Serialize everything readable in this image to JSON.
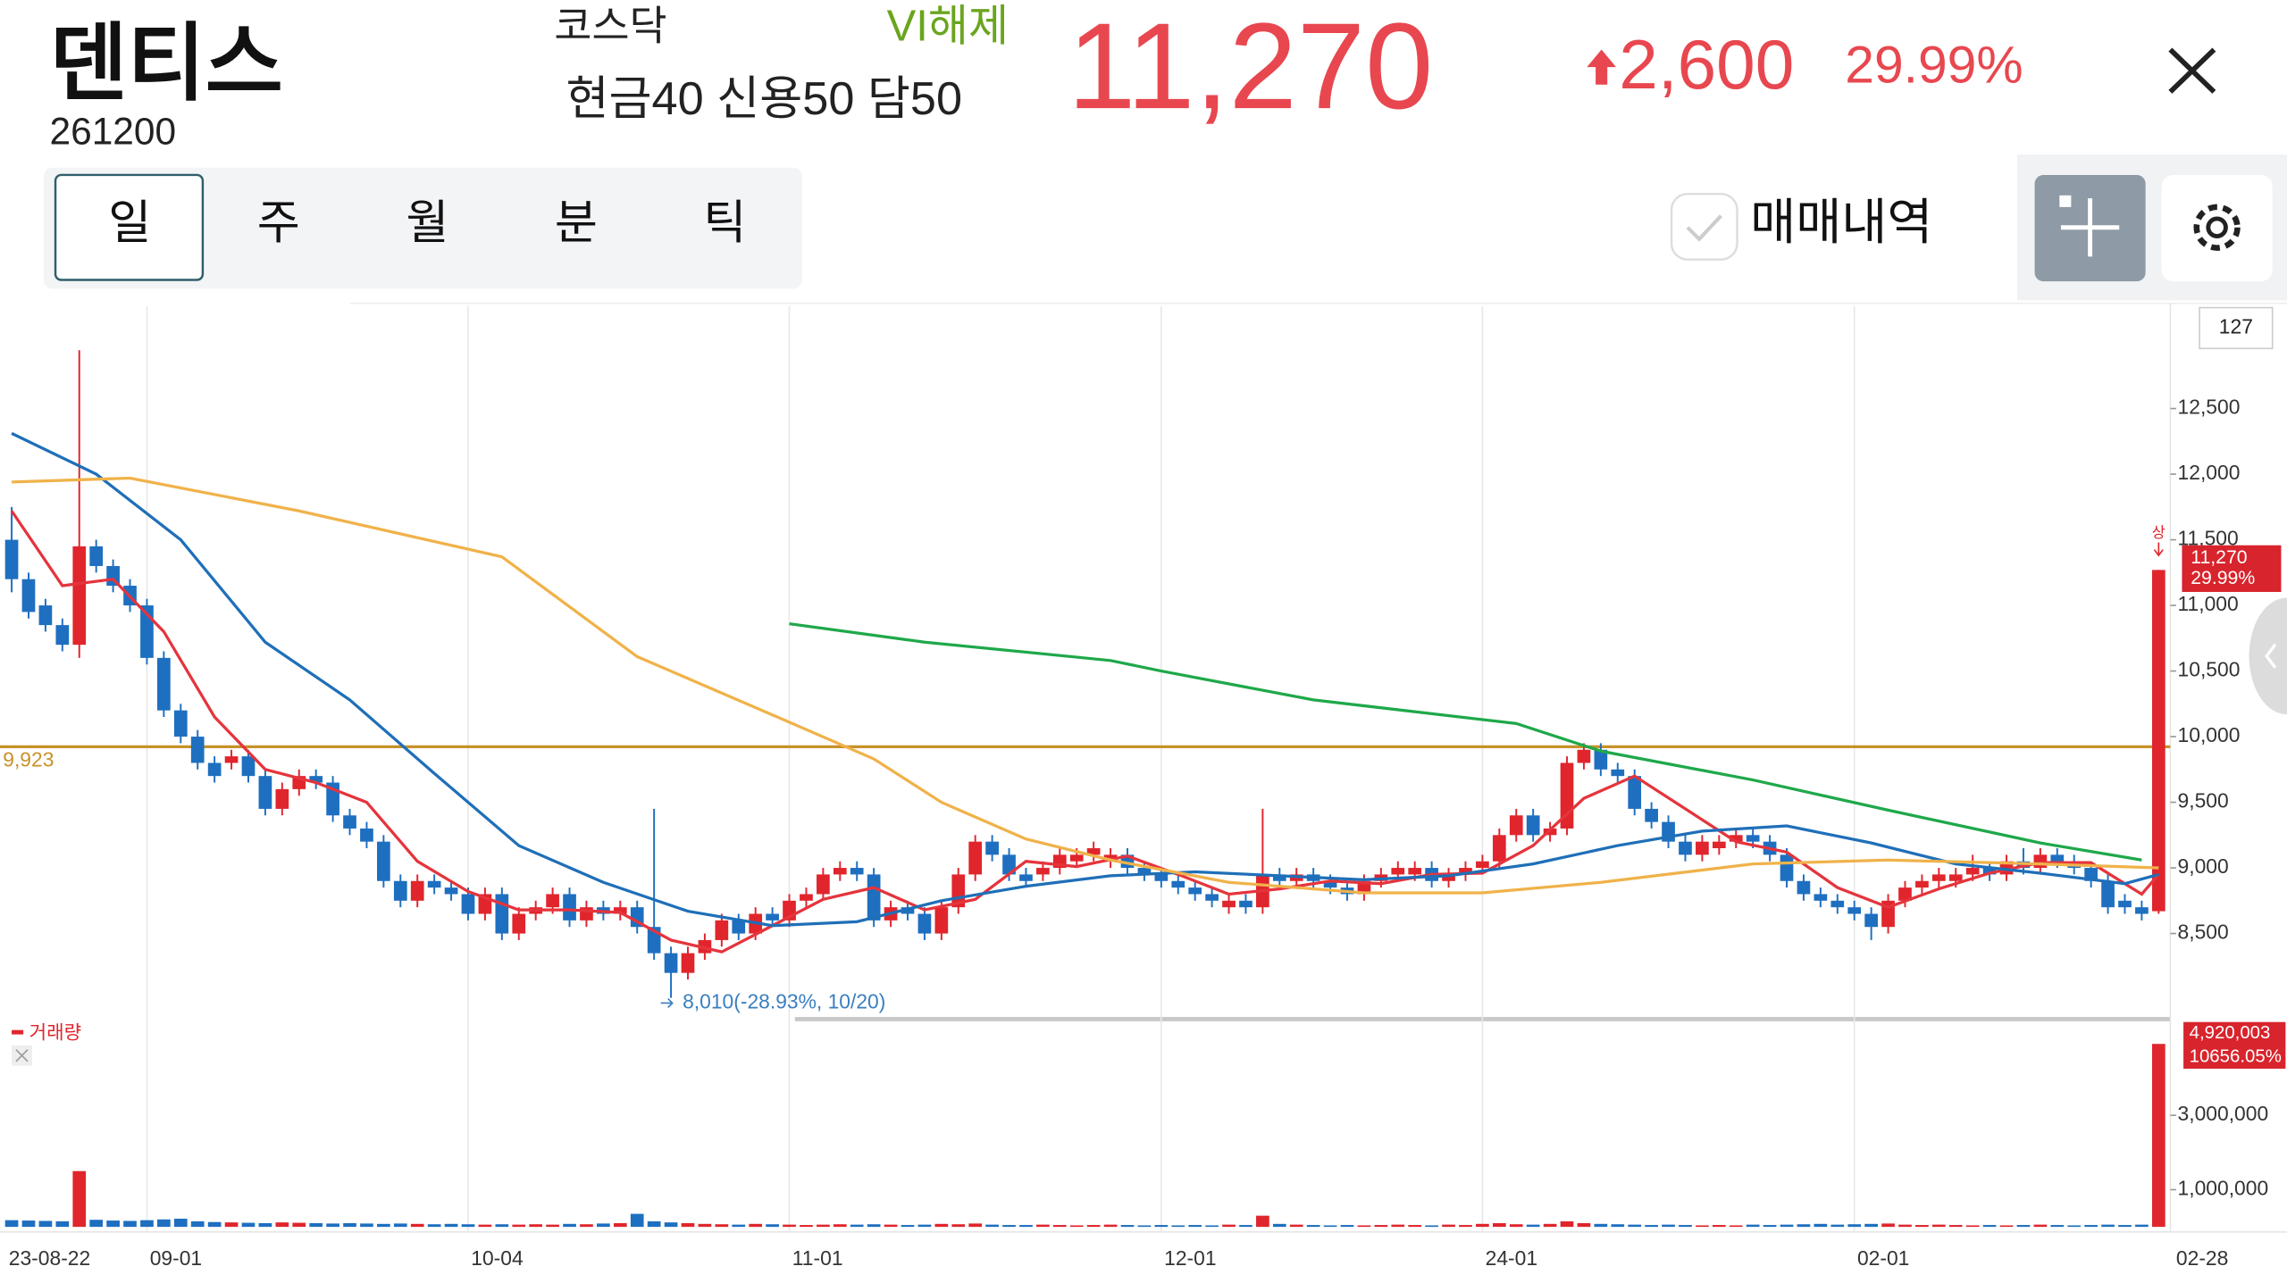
{
  "header": {
    "name": "덴티스",
    "code": "261200",
    "market": "코스닥",
    "vi_status": "VI해제",
    "margin": "현금40 신용50 담50",
    "price": "11,270",
    "change": "2,600",
    "change_pct": "29.99%"
  },
  "tabs": [
    "일",
    "주",
    "월",
    "분",
    "틱"
  ],
  "controls": {
    "trade_history": "매매내역"
  },
  "chart_data": {
    "type": "candlestick",
    "up_color": "#e0252c",
    "down_color": "#1e6fc0",
    "categories": [
      "23-08-22",
      null,
      null,
      null,
      null,
      null,
      null,
      null,
      "09-01",
      null,
      null,
      null,
      null,
      null,
      null,
      null,
      null,
      null,
      null,
      null,
      null,
      null,
      null,
      null,
      null,
      null,
      null,
      "10-04",
      null,
      null,
      null,
      null,
      null,
      null,
      null,
      null,
      null,
      null,
      null,
      null,
      null,
      null,
      null,
      null,
      null,
      null,
      "11-01",
      null,
      null,
      null,
      null,
      null,
      null,
      null,
      null,
      null,
      null,
      null,
      null,
      null,
      null,
      null,
      null,
      null,
      null,
      null,
      null,
      null,
      "12-01",
      null,
      null,
      null,
      null,
      null,
      null,
      null,
      null,
      null,
      null,
      null,
      null,
      null,
      null,
      null,
      null,
      null,
      null,
      "24-01",
      null,
      null,
      null,
      null,
      null,
      null,
      null,
      null,
      null,
      null,
      null,
      null,
      null,
      null,
      null,
      null,
      null,
      null,
      null,
      null,
      null,
      "02-01",
      null,
      null,
      null,
      null,
      null,
      null,
      null,
      null,
      null,
      null,
      null,
      null,
      null,
      null,
      null,
      null,
      null,
      "02-28"
    ],
    "x_grid": true,
    "ohlc": [
      [
        11500,
        11750,
        11100,
        11200
      ],
      [
        11200,
        11250,
        10900,
        10950
      ],
      [
        11000,
        11050,
        10800,
        10850
      ],
      [
        10850,
        10900,
        10650,
        10700
      ],
      [
        10700,
        12944,
        10600,
        11450
      ],
      [
        11450,
        11500,
        11250,
        11300
      ],
      [
        11300,
        11350,
        11100,
        11150
      ],
      [
        11150,
        11200,
        10950,
        11000
      ],
      [
        11000,
        11050,
        10550,
        10600
      ],
      [
        10600,
        10650,
        10150,
        10200
      ],
      [
        10200,
        10250,
        9950,
        10000
      ],
      [
        10000,
        10050,
        9750,
        9800
      ],
      [
        9800,
        9850,
        9650,
        9700
      ],
      [
        9800,
        9900,
        9750,
        9850
      ],
      [
        9850,
        9900,
        9650,
        9700
      ],
      [
        9700,
        9750,
        9400,
        9450
      ],
      [
        9450,
        9650,
        9400,
        9600
      ],
      [
        9600,
        9750,
        9550,
        9700
      ],
      [
        9700,
        9750,
        9600,
        9650
      ],
      [
        9650,
        9700,
        9350,
        9400
      ],
      [
        9400,
        9450,
        9250,
        9300
      ],
      [
        9300,
        9350,
        9150,
        9200
      ],
      [
        9200,
        9250,
        8850,
        8900
      ],
      [
        8900,
        8950,
        8700,
        8750
      ],
      [
        8750,
        8950,
        8700,
        8900
      ],
      [
        8900,
        8950,
        8800,
        8850
      ],
      [
        8850,
        8900,
        8750,
        8800
      ],
      [
        8800,
        8850,
        8600,
        8650
      ],
      [
        8650,
        8850,
        8600,
        8800
      ],
      [
        8800,
        8850,
        8450,
        8500
      ],
      [
        8500,
        8700,
        8450,
        8650
      ],
      [
        8650,
        8750,
        8600,
        8700
      ],
      [
        8700,
        8850,
        8650,
        8800
      ],
      [
        8800,
        8850,
        8550,
        8600
      ],
      [
        8600,
        8750,
        8550,
        8700
      ],
      [
        8700,
        8750,
        8600,
        8650
      ],
      [
        8650,
        8750,
        8600,
        8700
      ],
      [
        8700,
        8750,
        8500,
        8550
      ],
      [
        8550,
        9450,
        8300,
        8350
      ],
      [
        8350,
        8400,
        8010,
        8200
      ],
      [
        8200,
        8400,
        8150,
        8350
      ],
      [
        8350,
        8500,
        8300,
        8450
      ],
      [
        8450,
        8650,
        8400,
        8600
      ],
      [
        8600,
        8650,
        8450,
        8500
      ],
      [
        8500,
        8700,
        8450,
        8650
      ],
      [
        8650,
        8700,
        8550,
        8600
      ],
      [
        8600,
        8800,
        8550,
        8750
      ],
      [
        8750,
        8850,
        8700,
        8800
      ],
      [
        8800,
        9000,
        8750,
        8950
      ],
      [
        8950,
        9050,
        8900,
        9000
      ],
      [
        9000,
        9050,
        8900,
        8950
      ],
      [
        8950,
        9000,
        8550,
        8600
      ],
      [
        8600,
        8750,
        8550,
        8700
      ],
      [
        8700,
        8750,
        8600,
        8650
      ],
      [
        8650,
        8700,
        8450,
        8500
      ],
      [
        8500,
        8750,
        8450,
        8700
      ],
      [
        8700,
        9000,
        8650,
        8950
      ],
      [
        8950,
        9250,
        8900,
        9200
      ],
      [
        9200,
        9250,
        9050,
        9100
      ],
      [
        9100,
        9150,
        8900,
        8950
      ],
      [
        8950,
        9000,
        8850,
        8900
      ],
      [
        8950,
        9050,
        8900,
        9000
      ],
      [
        9000,
        9150,
        8950,
        9100
      ],
      [
        9050,
        9150,
        9000,
        9100
      ],
      [
        9100,
        9200,
        9050,
        9150
      ],
      [
        9050,
        9150,
        9000,
        9100
      ],
      [
        9100,
        9150,
        8950,
        9000
      ],
      [
        9000,
        9050,
        8900,
        8950
      ],
      [
        8950,
        9000,
        8850,
        8900
      ],
      [
        8900,
        8950,
        8800,
        8850
      ],
      [
        8850,
        8900,
        8750,
        8800
      ],
      [
        8800,
        8850,
        8700,
        8750
      ],
      [
        8700,
        8800,
        8650,
        8750
      ],
      [
        8750,
        8800,
        8650,
        8700
      ],
      [
        8700,
        9450,
        8650,
        8950
      ],
      [
        8950,
        9000,
        8850,
        8900
      ],
      [
        8900,
        9000,
        8850,
        8950
      ],
      [
        8950,
        9000,
        8850,
        8900
      ],
      [
        8900,
        8950,
        8800,
        8850
      ],
      [
        8850,
        8900,
        8750,
        8800
      ],
      [
        8800,
        8950,
        8750,
        8900
      ],
      [
        8900,
        9000,
        8850,
        8950
      ],
      [
        8950,
        9050,
        8900,
        9000
      ],
      [
        8950,
        9050,
        8900,
        9000
      ],
      [
        9000,
        9050,
        8850,
        8900
      ],
      [
        8900,
        9000,
        8850,
        8950
      ],
      [
        8950,
        9050,
        8900,
        9000
      ],
      [
        9000,
        9100,
        8950,
        9050
      ],
      [
        9050,
        9300,
        9000,
        9250
      ],
      [
        9250,
        9450,
        9200,
        9400
      ],
      [
        9400,
        9450,
        9200,
        9250
      ],
      [
        9250,
        9350,
        9200,
        9300
      ],
      [
        9300,
        9850,
        9250,
        9800
      ],
      [
        9800,
        9950,
        9750,
        9900
      ],
      [
        9900,
        9950,
        9700,
        9750
      ],
      [
        9750,
        9800,
        9650,
        9700
      ],
      [
        9700,
        9750,
        9400,
        9450
      ],
      [
        9450,
        9500,
        9300,
        9350
      ],
      [
        9350,
        9400,
        9150,
        9200
      ],
      [
        9200,
        9250,
        9050,
        9100
      ],
      [
        9100,
        9250,
        9050,
        9200
      ],
      [
        9150,
        9250,
        9100,
        9200
      ],
      [
        9200,
        9300,
        9150,
        9250
      ],
      [
        9250,
        9300,
        9150,
        9200
      ],
      [
        9200,
        9250,
        9050,
        9100
      ],
      [
        9100,
        9150,
        8850,
        8900
      ],
      [
        8900,
        8950,
        8750,
        8800
      ],
      [
        8800,
        8850,
        8700,
        8750
      ],
      [
        8750,
        8800,
        8650,
        8700
      ],
      [
        8700,
        8750,
        8600,
        8650
      ],
      [
        8650,
        8700,
        8450,
        8550
      ],
      [
        8550,
        8800,
        8500,
        8750
      ],
      [
        8750,
        8900,
        8700,
        8850
      ],
      [
        8850,
        8950,
        8800,
        8900
      ],
      [
        8900,
        9000,
        8850,
        8950
      ],
      [
        8900,
        9000,
        8850,
        8950
      ],
      [
        8950,
        9100,
        8900,
        9000
      ],
      [
        9000,
        9050,
        8900,
        8950
      ],
      [
        8950,
        9100,
        8900,
        9050
      ],
      [
        9050,
        9150,
        8950,
        9000
      ],
      [
        9000,
        9150,
        8950,
        9100
      ],
      [
        9100,
        9150,
        9000,
        9050
      ],
      [
        9050,
        9100,
        8950,
        9000
      ],
      [
        9000,
        9050,
        8850,
        8900
      ],
      [
        8900,
        8950,
        8650,
        8700
      ],
      [
        8750,
        8800,
        8650,
        8700
      ],
      [
        8700,
        8750,
        8600,
        8650
      ],
      [
        8670,
        11270,
        8650,
        11270
      ]
    ],
    "lines": [
      {
        "color": "#e5343c",
        "x": [
          0,
          3,
          6,
          9,
          12,
          15,
          18,
          21,
          24,
          27,
          30,
          33,
          36,
          39,
          42,
          45,
          48,
          51,
          54,
          57,
          60,
          63,
          66,
          69,
          72,
          75,
          78,
          81,
          84,
          87,
          90,
          93,
          96,
          99,
          102,
          105,
          108,
          111,
          114,
          117,
          120,
          123,
          126,
          127
        ],
        "values": [
          11720,
          11150,
          11200,
          10800,
          10150,
          9750,
          9650,
          9500,
          9050,
          8820,
          8680,
          8680,
          8660,
          8450,
          8360,
          8560,
          8760,
          8850,
          8680,
          8760,
          9050,
          9010,
          9090,
          8950,
          8800,
          8840,
          8900,
          8880,
          8950,
          8960,
          9170,
          9530,
          9700,
          9450,
          9200,
          9120,
          8850,
          8700,
          8840,
          8960,
          9040,
          9040,
          8800,
          8950
        ]
      },
      {
        "color": "#1f6fb8",
        "x": [
          0,
          5,
          10,
          15,
          20,
          25,
          30,
          35,
          40,
          45,
          50,
          55,
          60,
          65,
          70,
          75,
          80,
          85,
          90,
          95,
          100,
          105,
          110,
          115,
          120,
          125,
          127
        ],
        "values": [
          12311,
          12000,
          11500,
          10720,
          10280,
          9720,
          9170,
          8890,
          8670,
          8560,
          8590,
          8750,
          8860,
          8940,
          8970,
          8940,
          8910,
          8940,
          9030,
          9170,
          9280,
          9320,
          9190,
          9030,
          8960,
          8880,
          8950
        ]
      },
      {
        "color": "#f0b24a",
        "x": [
          0,
          7,
          17,
          29,
          37,
          46,
          51,
          55,
          60,
          65,
          72,
          80,
          87,
          94,
          103,
          111,
          120,
          127
        ],
        "values": [
          11940,
          11970,
          11720,
          11370,
          10610,
          10110,
          9830,
          9500,
          9220,
          9060,
          8890,
          8810,
          8810,
          8890,
          9030,
          9060,
          9030,
          9000
        ]
      },
      {
        "color": "#1fa84a",
        "x": [
          46,
          54,
          65,
          68,
          77,
          89,
          94,
          103,
          111,
          120,
          126
        ],
        "values": [
          10860,
          10720,
          10580,
          10500,
          10280,
          10100,
          9890,
          9670,
          9440,
          9190,
          9060
        ]
      }
    ],
    "ylim": [
      7870,
      13280
    ],
    "yticks": [
      {
        "value": 8500,
        "label": "8,500"
      },
      {
        "value": 9000,
        "label": "9,000"
      },
      {
        "value": 9500,
        "label": "9,500"
      },
      {
        "value": 10000,
        "label": "10,000"
      },
      {
        "value": 10500,
        "label": "10,500"
      },
      {
        "value": 11000,
        "label": "11,000"
      },
      {
        "value": 11500,
        "label": "11,500"
      },
      {
        "value": 12000,
        "label": "12,000"
      },
      {
        "value": 12500,
        "label": "12,500"
      }
    ],
    "ref_line": {
      "value": 9923,
      "label": "9,923",
      "color": "#c8922a"
    },
    "low_annotation": "8,010(-28.93%, 10/20)",
    "candle_count": "127",
    "limit_marker": "상",
    "price_tag": {
      "price": "11,270",
      "pct": "29.99%"
    },
    "volume_title": "거래량",
    "volumes": [
      180000,
      170000,
      160000,
      150000,
      1500000,
      190000,
      170000,
      160000,
      180000,
      200000,
      220000,
      150000,
      130000,
      120000,
      110000,
      100000,
      120000,
      110000,
      100000,
      90000,
      100000,
      90000,
      80000,
      90000,
      80000,
      70000,
      80000,
      70000,
      60000,
      70000,
      60000,
      70000,
      60000,
      80000,
      70000,
      90000,
      100000,
      350000,
      150000,
      120000,
      100000,
      80000,
      70000,
      60000,
      80000,
      70000,
      60000,
      50000,
      60000,
      70000,
      60000,
      70000,
      60000,
      50000,
      60000,
      80000,
      70000,
      90000,
      60000,
      50000,
      50000,
      60000,
      50000,
      40000,
      50000,
      60000,
      50000,
      40000,
      50000,
      40000,
      50000,
      40000,
      60000,
      50000,
      300000,
      80000,
      60000,
      50000,
      40000,
      50000,
      40000,
      50000,
      60000,
      50000,
      40000,
      60000,
      50000,
      80000,
      100000,
      70000,
      60000,
      80000,
      150000,
      100000,
      80000,
      70000,
      60000,
      50000,
      60000,
      50000,
      40000,
      50000,
      40000,
      60000,
      50000,
      60000,
      70000,
      80000,
      60000,
      70000,
      80000,
      90000,
      60000,
      50000,
      60000,
      50000,
      40000,
      50000,
      40000,
      50000,
      60000,
      50000,
      40000,
      50000,
      60000,
      50000,
      60000,
      4920003
    ],
    "volume_ylim": [
      0,
      5430000
    ],
    "volume_ticks": [
      {
        "value": 1000000,
        "label": "1,000,000"
      },
      {
        "value": 3000000,
        "label": "3,000,000"
      }
    ],
    "volume_tag": {
      "volume": "4,920,003",
      "pct": "10656.05%"
    }
  }
}
